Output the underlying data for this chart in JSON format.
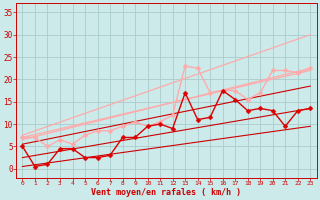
{
  "title": "",
  "xlabel": "Vent moyen/en rafales ( km/h )",
  "xlim": [
    -0.5,
    23.5
  ],
  "ylim": [
    -2,
    37
  ],
  "xticks": [
    0,
    1,
    2,
    3,
    4,
    5,
    6,
    7,
    8,
    9,
    10,
    11,
    12,
    13,
    14,
    15,
    16,
    17,
    18,
    19,
    20,
    21,
    22,
    23
  ],
  "yticks": [
    0,
    5,
    10,
    15,
    20,
    25,
    30,
    35
  ],
  "bg_color": "#cceaea",
  "grid_color": "#aacccc",
  "series": [
    {
      "x": [
        0,
        23
      ],
      "y": [
        0.5,
        9.5
      ],
      "color": "#cc0000",
      "lw": 0.8,
      "marker": null
    },
    {
      "x": [
        0,
        23
      ],
      "y": [
        2.5,
        13.5
      ],
      "color": "#cc0000",
      "lw": 0.8,
      "marker": null
    },
    {
      "x": [
        0,
        23
      ],
      "y": [
        5.5,
        18.5
      ],
      "color": "#cc0000",
      "lw": 0.8,
      "marker": null
    },
    {
      "x": [
        0,
        23
      ],
      "y": [
        6.5,
        22.5
      ],
      "color": "#ffaaaa",
      "lw": 0.9,
      "marker": null
    },
    {
      "x": [
        0,
        23
      ],
      "y": [
        7.0,
        22.0
      ],
      "color": "#ffaaaa",
      "lw": 0.9,
      "marker": null
    },
    {
      "x": [
        0,
        23
      ],
      "y": [
        7.5,
        30.0
      ],
      "color": "#ffaaaa",
      "lw": 0.9,
      "marker": null
    },
    {
      "x": [
        0,
        1,
        2,
        3,
        4,
        5,
        6,
        7,
        8,
        9,
        10,
        11,
        12,
        13,
        14,
        15,
        16,
        17,
        18,
        19,
        20,
        21,
        22,
        23
      ],
      "y": [
        7.0,
        7.0,
        5.0,
        6.5,
        5.5,
        7.5,
        8.5,
        8.5,
        9.5,
        10.5,
        9.5,
        10.5,
        12.0,
        23.0,
        22.5,
        17.0,
        17.5,
        17.5,
        15.5,
        17.0,
        22.0,
        22.0,
        21.5,
        22.5
      ],
      "color": "#ffaaaa",
      "lw": 1.0,
      "marker": "D",
      "ms": 2.5
    },
    {
      "x": [
        0,
        1,
        2,
        3,
        4,
        5,
        6,
        7,
        8,
        9,
        10,
        11,
        12,
        13,
        14,
        15,
        16,
        17,
        18,
        19,
        20,
        21,
        22,
        23
      ],
      "y": [
        5.0,
        0.5,
        1.0,
        4.5,
        4.5,
        2.5,
        2.5,
        3.0,
        7.0,
        7.0,
        9.5,
        10.0,
        9.0,
        17.0,
        11.0,
        11.5,
        17.5,
        15.5,
        13.0,
        13.5,
        13.0,
        9.5,
        13.0,
        13.5
      ],
      "color": "#dd0000",
      "lw": 1.0,
      "marker": "D",
      "ms": 2.5
    }
  ]
}
